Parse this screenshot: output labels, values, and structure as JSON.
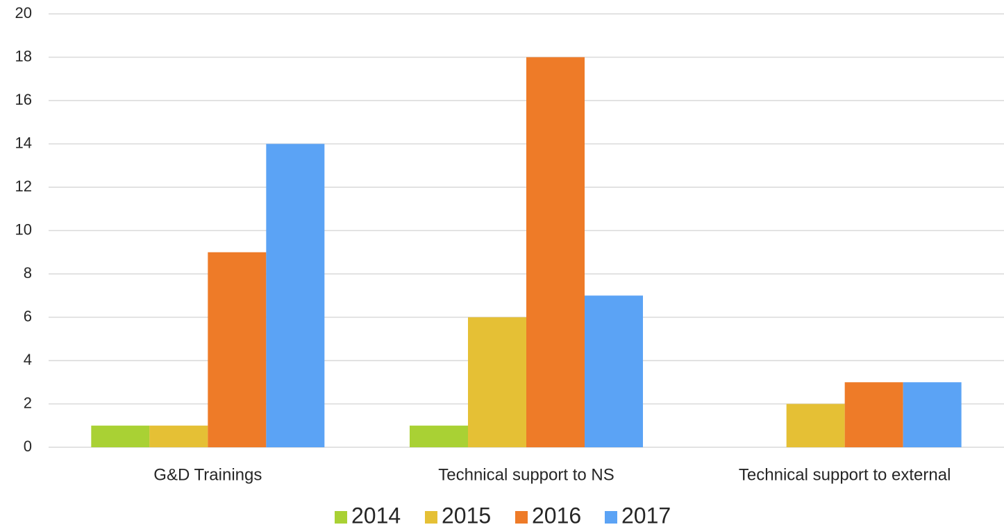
{
  "chart_data": {
    "type": "bar",
    "categories": [
      "G&D Trainings",
      "Technical support to NS",
      "Technical support to external"
    ],
    "series": [
      {
        "name": "2014",
        "color": "#a9d134",
        "values": [
          1,
          1,
          0
        ]
      },
      {
        "name": "2015",
        "color": "#e5c035",
        "values": [
          1,
          6,
          2
        ]
      },
      {
        "name": "2016",
        "color": "#ee7b28",
        "values": [
          9,
          18,
          3
        ]
      },
      {
        "name": "2017",
        "color": "#5ba3f5",
        "values": [
          14,
          7,
          3
        ]
      }
    ],
    "ylim": [
      0,
      20
    ],
    "yticks": [
      0,
      2,
      4,
      6,
      8,
      10,
      12,
      14,
      16,
      18,
      20
    ],
    "grid": true,
    "legend": "bottom"
  }
}
